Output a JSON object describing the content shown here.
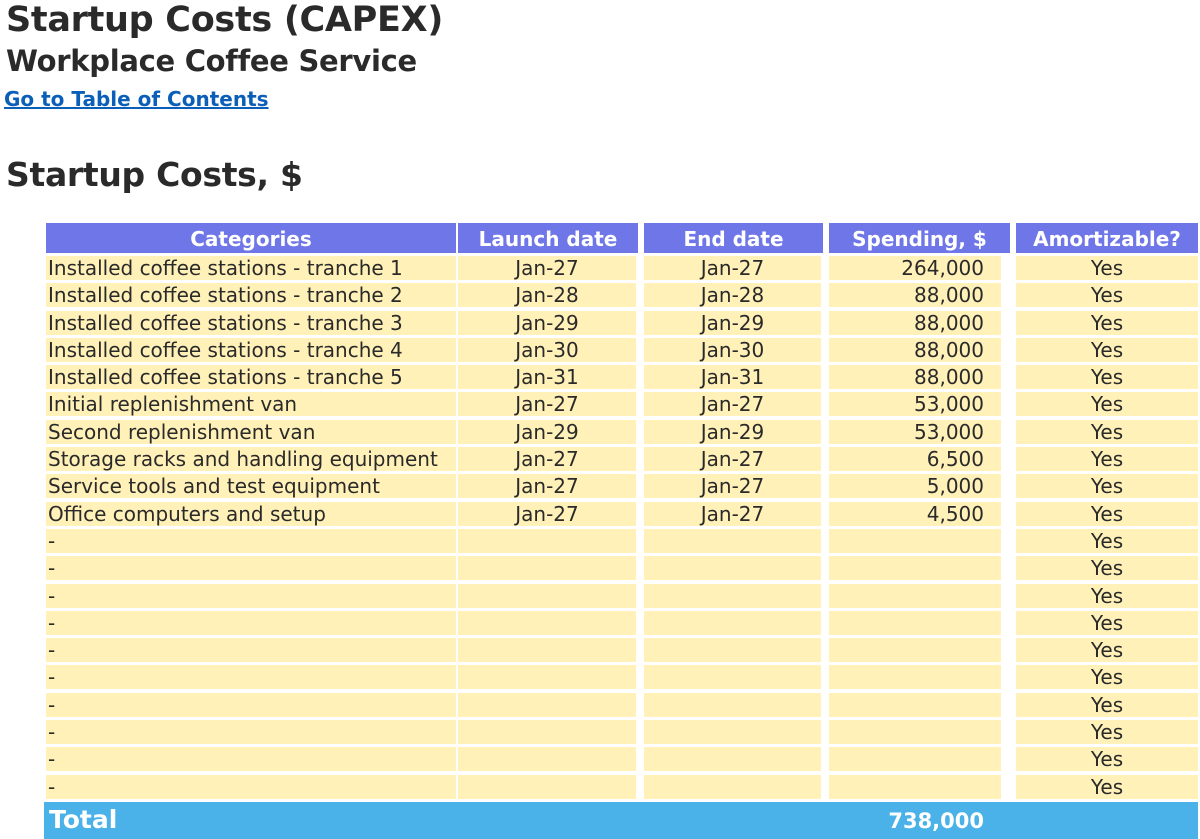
{
  "header": {
    "title": "Startup Costs (CAPEX)",
    "subtitle": "Workplace Coffee Service",
    "toc_link": "Go to Table of Contents"
  },
  "section": {
    "title": "Startup Costs, $"
  },
  "table": {
    "columns": [
      "Categories",
      "Launch date",
      "End date",
      "Spending, $",
      "Amortizable?"
    ],
    "rows": [
      [
        "Installed coffee stations - tranche 1",
        "Jan-27",
        "Jan-27",
        "264,000",
        "Yes"
      ],
      [
        "Installed coffee stations - tranche 2",
        "Jan-28",
        "Jan-28",
        "88,000",
        "Yes"
      ],
      [
        "Installed coffee stations - tranche 3",
        "Jan-29",
        "Jan-29",
        "88,000",
        "Yes"
      ],
      [
        "Installed coffee stations - tranche 4",
        "Jan-30",
        "Jan-30",
        "88,000",
        "Yes"
      ],
      [
        "Installed coffee stations - tranche 5",
        "Jan-31",
        "Jan-31",
        "88,000",
        "Yes"
      ],
      [
        "Initial replenishment van",
        "Jan-27",
        "Jan-27",
        "53,000",
        "Yes"
      ],
      [
        "Second replenishment van",
        "Jan-29",
        "Jan-29",
        "53,000",
        "Yes"
      ],
      [
        "Storage racks and handling equipment",
        "Jan-27",
        "Jan-27",
        "6,500",
        "Yes"
      ],
      [
        "Service tools and test equipment",
        "Jan-27",
        "Jan-27",
        "5,000",
        "Yes"
      ],
      [
        "Office computers and setup",
        "Jan-27",
        "Jan-27",
        "4,500",
        "Yes"
      ],
      [
        "-",
        "",
        "",
        "",
        "Yes"
      ],
      [
        "-",
        "",
        "",
        "",
        "Yes"
      ],
      [
        "-",
        "",
        "",
        "",
        "Yes"
      ],
      [
        "-",
        "",
        "",
        "",
        "Yes"
      ],
      [
        "-",
        "",
        "",
        "",
        "Yes"
      ],
      [
        "-",
        "",
        "",
        "",
        "Yes"
      ],
      [
        "-",
        "",
        "",
        "",
        "Yes"
      ],
      [
        "-",
        "",
        "",
        "",
        "Yes"
      ],
      [
        "-",
        "",
        "",
        "",
        "Yes"
      ],
      [
        "-",
        "",
        "",
        "",
        "Yes"
      ]
    ],
    "total": {
      "label": "Total",
      "spending": "738,000"
    }
  },
  "colors": {
    "header_bg": "#6f76e8",
    "cell_bg": "#fff1b8",
    "total_bg": "#4ab2e8",
    "link": "#0b5fb8"
  }
}
